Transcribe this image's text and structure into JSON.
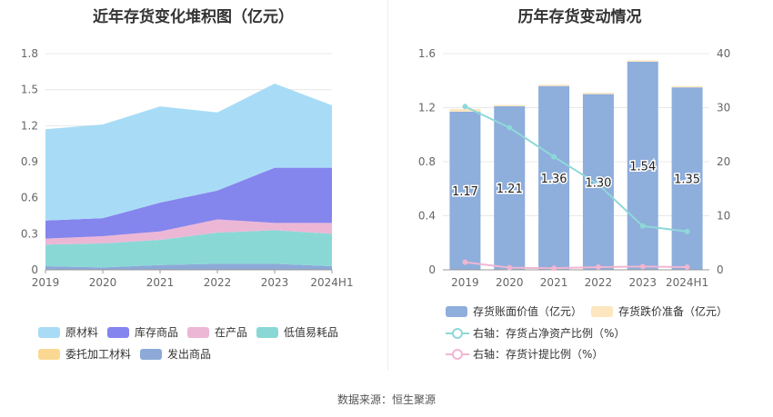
{
  "titles": {
    "left": "近年存货变化堆积图（亿元）",
    "right": "历年存货变动情况"
  },
  "source": "数据来源：恒生聚源",
  "colors": {
    "raw_materials": "#a8dcf6",
    "finished_goods": "#8585ee",
    "wip": "#ecb7d5",
    "low_value": "#8ad8d6",
    "consigned": "#fbd892",
    "shipped": "#8ca9d8",
    "bar_value": "#8eaedc",
    "bar_reserve": "#fde6c0",
    "line_ratio": "#8fd8d8",
    "line_provision": "#f0b6d2"
  },
  "chart_data": [
    {
      "type": "area",
      "stacked": true,
      "title": "近年存货变化堆积图（亿元）",
      "x": [
        "2019",
        "2020",
        "2021",
        "2022",
        "2023",
        "2024H1"
      ],
      "ylim": [
        0,
        1.8
      ],
      "yticks": [
        "0",
        "0.3",
        "0.6",
        "0.9",
        "1.2",
        "1.5",
        "1.8"
      ],
      "grid": true,
      "legend_position": "bottom",
      "series": [
        {
          "name": "发出商品",
          "color_key": "shipped",
          "values": [
            0.03,
            0.02,
            0.04,
            0.05,
            0.05,
            0.03
          ]
        },
        {
          "name": "低值易耗品",
          "color_key": "low_value",
          "values": [
            0.18,
            0.2,
            0.21,
            0.26,
            0.28,
            0.27
          ]
        },
        {
          "name": "委托加工材料",
          "color_key": "consigned",
          "values": [
            0.0,
            0.0,
            0.0,
            0.0,
            0.0,
            0.0
          ]
        },
        {
          "name": "在产品",
          "color_key": "wip",
          "values": [
            0.05,
            0.06,
            0.07,
            0.11,
            0.06,
            0.09
          ]
        },
        {
          "name": "库存商品",
          "color_key": "finished_goods",
          "values": [
            0.15,
            0.15,
            0.24,
            0.24,
            0.46,
            0.46
          ]
        },
        {
          "name": "原材料",
          "color_key": "raw_materials",
          "values": [
            0.76,
            0.78,
            0.8,
            0.65,
            0.7,
            0.52
          ]
        }
      ],
      "legend": [
        "原材料",
        "库存商品",
        "在产品",
        "低值易耗品",
        "委托加工材料",
        "发出商品"
      ]
    },
    {
      "type": "bar",
      "stacked": true,
      "title": "历年存货变动情况",
      "categories": [
        "2019",
        "2020",
        "2021",
        "2022",
        "2023",
        "2024H1"
      ],
      "ylim": [
        0,
        1.6
      ],
      "yticks": [
        "0",
        "0.4",
        "0.8",
        "1.2",
        "1.6"
      ],
      "y2lim": [
        0,
        40
      ],
      "y2ticks": [
        "0",
        "10",
        "20",
        "30",
        "40"
      ],
      "series": [
        {
          "name": "存货账面价值（亿元）",
          "axis": "left",
          "values": [
            1.17,
            1.21,
            1.36,
            1.3,
            1.54,
            1.35
          ],
          "data_labels": [
            "1.17",
            "1.21",
            "1.36",
            "1.30",
            "1.54",
            "1.35"
          ]
        },
        {
          "name": "存货跌价准备（亿元）",
          "axis": "left",
          "values": [
            0.02,
            0.01,
            0.01,
            0.01,
            0.01,
            0.01
          ]
        },
        {
          "name": "右轴：存货占净资产比例（%）",
          "axis": "right",
          "type": "line",
          "values": [
            30.2,
            26.3,
            20.9,
            15.8,
            8.1,
            7.1
          ]
        },
        {
          "name": "右轴：存货计提比例（%）",
          "axis": "right",
          "type": "line",
          "values": [
            1.4,
            0.4,
            0.3,
            0.5,
            0.6,
            0.5
          ]
        }
      ]
    }
  ]
}
